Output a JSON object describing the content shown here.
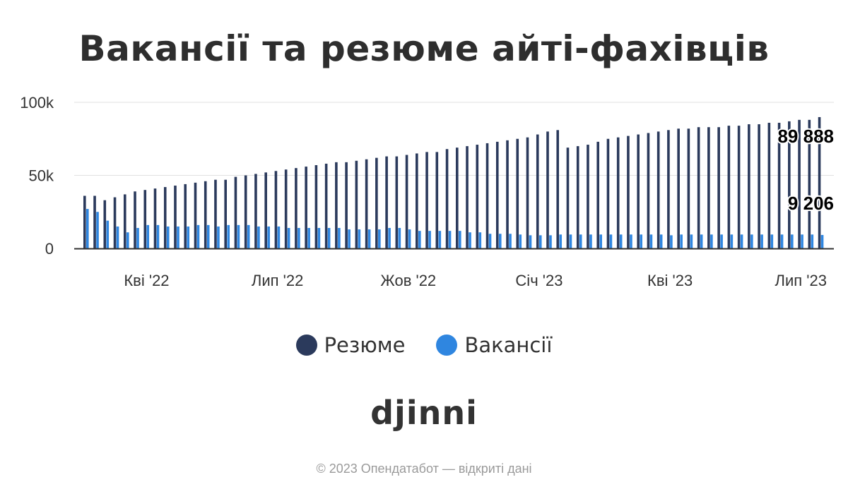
{
  "title": "Вакансії та резюме айті-фахівців",
  "logo_text": "djinni",
  "footer": "© 2023 Опендатабот — відкриті дані",
  "colors": {
    "resume": "#2b3a5c",
    "vacancy": "#2f86e0",
    "axis": "#333333",
    "grid": "#e0e0e0"
  },
  "chart_data": {
    "type": "bar",
    "title": "Вакансії та резюме айті-фахівців",
    "xlabel": "",
    "ylabel": "",
    "ylim": [
      0,
      100000
    ],
    "y_ticks": [
      {
        "value": 0,
        "label": "0"
      },
      {
        "value": 50000,
        "label": "50k"
      },
      {
        "value": 100000,
        "label": "100k"
      }
    ],
    "x_ticks": [
      {
        "index": 6,
        "label": "Кві '22"
      },
      {
        "index": 19,
        "label": "Лип '22"
      },
      {
        "index": 32,
        "label": "Жов '22"
      },
      {
        "index": 45,
        "label": "Січ '23"
      },
      {
        "index": 58,
        "label": "Кві '23"
      },
      {
        "index": 71,
        "label": "Лип '23"
      }
    ],
    "grid": true,
    "legend_position": "bottom",
    "series": [
      {
        "name": "Резюме",
        "values": [
          36000,
          36000,
          33000,
          35000,
          37000,
          39000,
          40000,
          41000,
          42000,
          43000,
          44000,
          45000,
          46000,
          47000,
          47000,
          49000,
          50000,
          51000,
          52000,
          53000,
          54000,
          55000,
          56000,
          57000,
          58000,
          59000,
          59000,
          60000,
          61000,
          62000,
          63000,
          63000,
          64000,
          65000,
          66000,
          66000,
          68000,
          69000,
          70000,
          71000,
          72000,
          73000,
          74000,
          75000,
          76000,
          78000,
          80000,
          81000,
          69000,
          70000,
          71000,
          73000,
          75000,
          76000,
          77000,
          78000,
          79000,
          80000,
          81000,
          82000,
          82000,
          83000,
          83000,
          83000,
          84000,
          84000,
          85000,
          85000,
          86000,
          86000,
          87000,
          88000,
          88000,
          89888
        ]
      },
      {
        "name": "Вакансії",
        "values": [
          27000,
          25000,
          19000,
          15000,
          11000,
          14000,
          16000,
          16000,
          15000,
          15000,
          15000,
          16000,
          16000,
          15000,
          16000,
          16000,
          16000,
          15000,
          15000,
          15000,
          14000,
          14000,
          14000,
          14000,
          14000,
          14000,
          13000,
          13000,
          13000,
          13000,
          14000,
          14000,
          13000,
          12000,
          12000,
          12000,
          12000,
          12000,
          11000,
          11000,
          10000,
          10000,
          10000,
          9500,
          9000,
          9000,
          9000,
          9500,
          9500,
          9500,
          9500,
          9500,
          9500,
          9500,
          9500,
          9500,
          9500,
          9500,
          9000,
          9500,
          9500,
          9500,
          9500,
          9500,
          9500,
          9500,
          9500,
          9500,
          9500,
          9500,
          9500,
          9500,
          9500,
          9206
        ]
      }
    ],
    "data_labels": [
      {
        "series": "Резюме",
        "index": 73,
        "text": "89 888"
      },
      {
        "series": "Вакансії",
        "index": 73,
        "text": "9 206"
      }
    ]
  }
}
